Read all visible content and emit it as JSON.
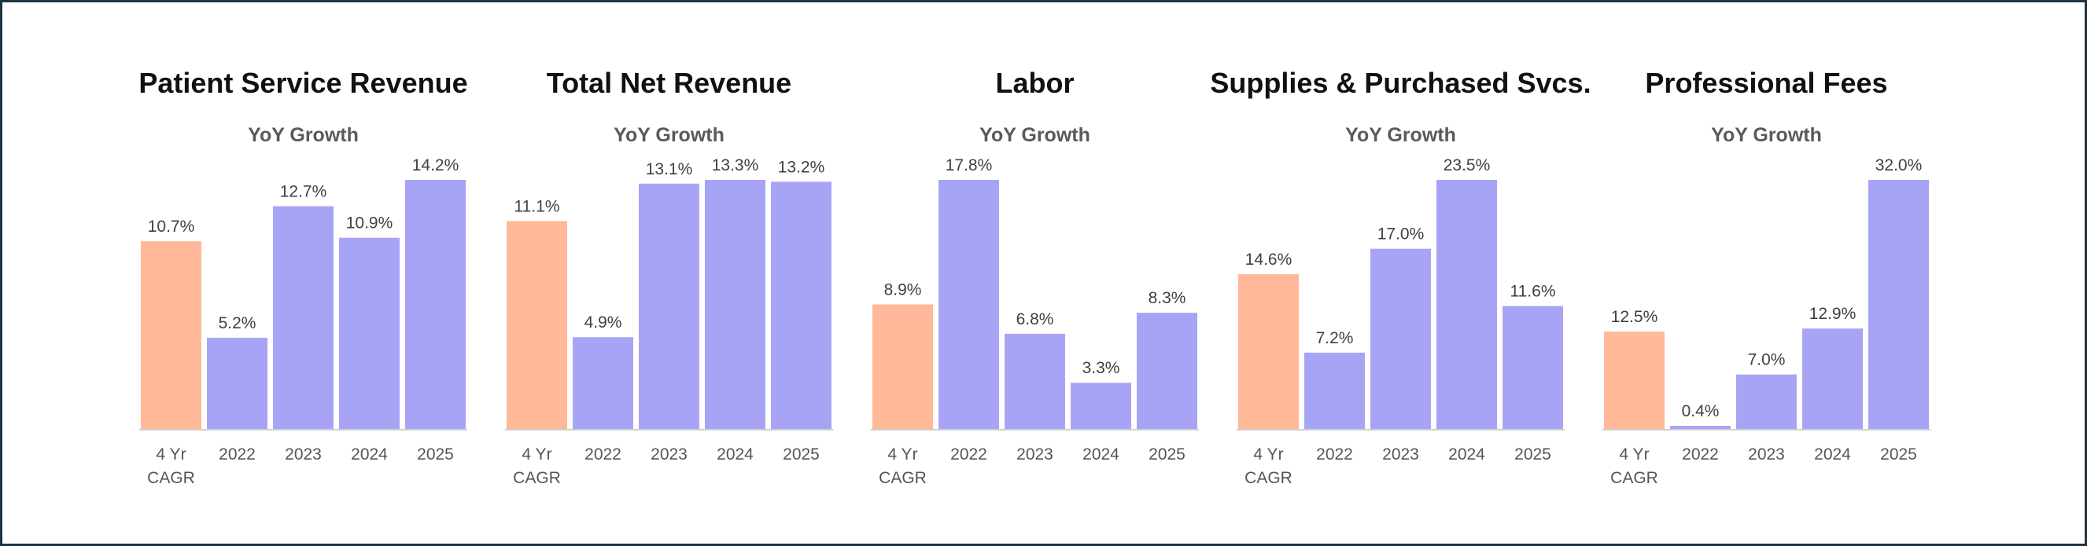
{
  "colors": {
    "cagr": "#ffb898",
    "year": "#a8a4f5"
  },
  "subtitle": "YoY Growth",
  "chart_data": [
    {
      "type": "bar",
      "title": "Patient Service Revenue",
      "subtitle": "YoY Growth",
      "categories": [
        [
          "4 Yr",
          "CAGR"
        ],
        [
          "2022"
        ],
        [
          "2023"
        ],
        [
          "2024"
        ],
        [
          "2025"
        ]
      ],
      "values": [
        10.7,
        5.2,
        12.7,
        10.9,
        14.2
      ],
      "labels": [
        "10.7%",
        "5.2%",
        "12.7%",
        "10.9%",
        "14.2%"
      ],
      "ylim": [
        0,
        14.2
      ]
    },
    {
      "type": "bar",
      "title": "Total Net Revenue",
      "subtitle": "YoY Growth",
      "categories": [
        [
          "4 Yr",
          "CAGR"
        ],
        [
          "2022"
        ],
        [
          "2023"
        ],
        [
          "2024"
        ],
        [
          "2025"
        ]
      ],
      "values": [
        11.1,
        4.9,
        13.1,
        13.3,
        13.2
      ],
      "labels": [
        "11.1%",
        "4.9%",
        "13.1%",
        "13.3%",
        "13.2%"
      ],
      "ylim": [
        0,
        13.3
      ]
    },
    {
      "type": "bar",
      "title": "Labor",
      "subtitle": "YoY Growth",
      "categories": [
        [
          "4 Yr",
          "CAGR"
        ],
        [
          "2022"
        ],
        [
          "2023"
        ],
        [
          "2024"
        ],
        [
          "2025"
        ]
      ],
      "values": [
        8.9,
        17.8,
        6.8,
        3.3,
        8.3
      ],
      "labels": [
        "8.9%",
        "17.8%",
        "6.8%",
        "3.3%",
        "8.3%"
      ],
      "ylim": [
        0,
        17.8
      ]
    },
    {
      "type": "bar",
      "title": "Supplies & Purchased Svcs.",
      "subtitle": "YoY Growth",
      "categories": [
        [
          "4 Yr",
          "CAGR"
        ],
        [
          "2022"
        ],
        [
          "2023"
        ],
        [
          "2024"
        ],
        [
          "2025"
        ]
      ],
      "values": [
        14.6,
        7.2,
        17.0,
        23.5,
        11.6
      ],
      "labels": [
        "14.6%",
        "7.2%",
        "17.0%",
        "23.5%",
        "11.6%"
      ],
      "ylim": [
        0,
        23.5
      ]
    },
    {
      "type": "bar",
      "title": "Professional Fees",
      "subtitle": "YoY Growth",
      "categories": [
        [
          "4 Yr",
          "CAGR"
        ],
        [
          "2022"
        ],
        [
          "2023"
        ],
        [
          "2024"
        ],
        [
          "2025"
        ]
      ],
      "values": [
        12.5,
        0.4,
        7.0,
        12.9,
        32.0
      ],
      "labels": [
        "12.5%",
        "0.4%",
        "7.0%",
        "12.9%",
        "32.0%"
      ],
      "ylim": [
        0,
        32.0
      ]
    }
  ]
}
